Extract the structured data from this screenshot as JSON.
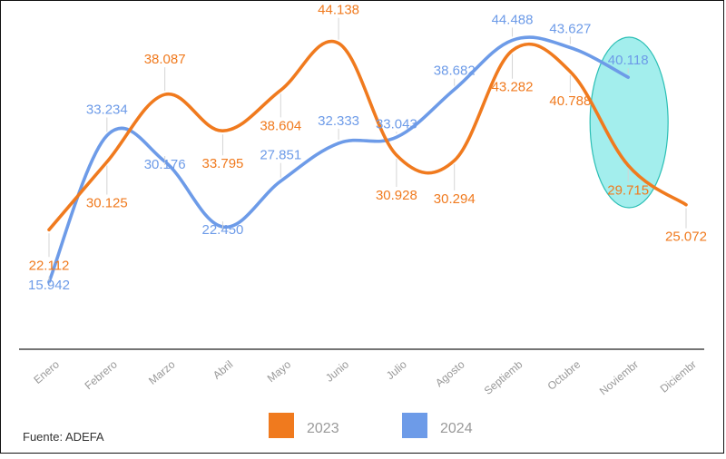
{
  "source_note": "Fuente: ADEFA",
  "chart_data": {
    "type": "line",
    "title": "",
    "xlabel": "",
    "ylabel": "",
    "categories": [
      "Enero",
      "Febrero",
      "Marzo",
      "Abril",
      "Mayo",
      "Junio",
      "Julio",
      "Agosto",
      "Septiemb",
      "Octubre",
      "Noviembr",
      "Diciembr"
    ],
    "ylim": [
      8000,
      47000
    ],
    "grid": false,
    "legend_position": "bottom",
    "series": [
      {
        "name": "2023",
        "color": "#F07A1E",
        "values": [
          22112,
          30125,
          38087,
          33795,
          38604,
          44138,
          30928,
          30294,
          43282,
          40788,
          29715,
          25072
        ],
        "labels": [
          "22.112",
          "30.125",
          "38.087",
          "33.795",
          "38.604",
          "44.138",
          "30.928",
          "30.294",
          "43.282",
          "40.788",
          "29.715",
          "25.072"
        ]
      },
      {
        "name": "2024",
        "color": "#6D9BE8",
        "values": [
          15942,
          33234,
          30176,
          22450,
          27851,
          32333,
          33043,
          38682,
          44488,
          43627,
          40118,
          null
        ],
        "labels": [
          "15.942",
          "33.234",
          "30.176",
          "22.450",
          "27.851",
          "32.333",
          "33.043",
          "38.682",
          "44.488",
          "43.627",
          "40.118",
          null
        ]
      }
    ],
    "annotations": [
      {
        "type": "ellipse",
        "category": "Noviembr",
        "color": "#9EEDEC",
        "stroke": "#2BBFB5"
      }
    ]
  }
}
